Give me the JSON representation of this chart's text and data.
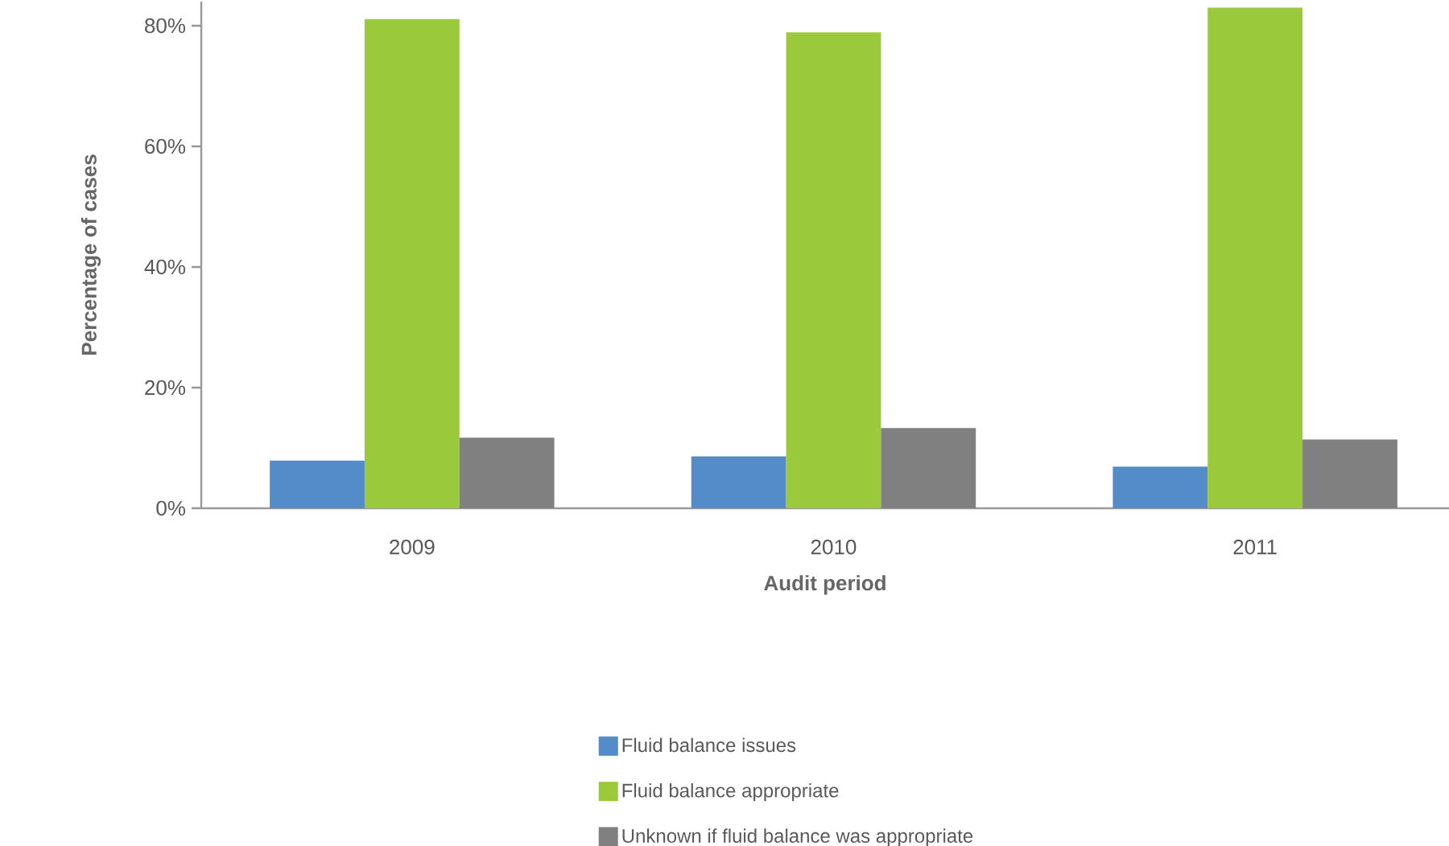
{
  "chart_data": {
    "type": "bar",
    "xlabel": "Audit period",
    "ylabel": "Percentage of cases",
    "categories": [
      "2009",
      "2010",
      "2011"
    ],
    "series": [
      {
        "name": "Fluid balance issues",
        "color": "#548bc9",
        "values": [
          7.9,
          8.6,
          6.9
        ]
      },
      {
        "name": "Fluid balance appropriate",
        "color": "#9aca3c",
        "values": [
          81.1,
          78.9,
          83.0
        ]
      },
      {
        "name": "Unknown if fluid balance was appropriate",
        "color": "#808080",
        "values": [
          11.7,
          13.3,
          11.4
        ]
      }
    ],
    "ylim": [
      0,
      84
    ],
    "yticks": [
      {
        "value": 0,
        "label": "0%"
      },
      {
        "value": 20,
        "label": "20%"
      },
      {
        "value": 40,
        "label": "40%"
      },
      {
        "value": 60,
        "label": "60%"
      },
      {
        "value": 80,
        "label": "80%"
      }
    ],
    "grid": false,
    "legend": "bottom"
  }
}
